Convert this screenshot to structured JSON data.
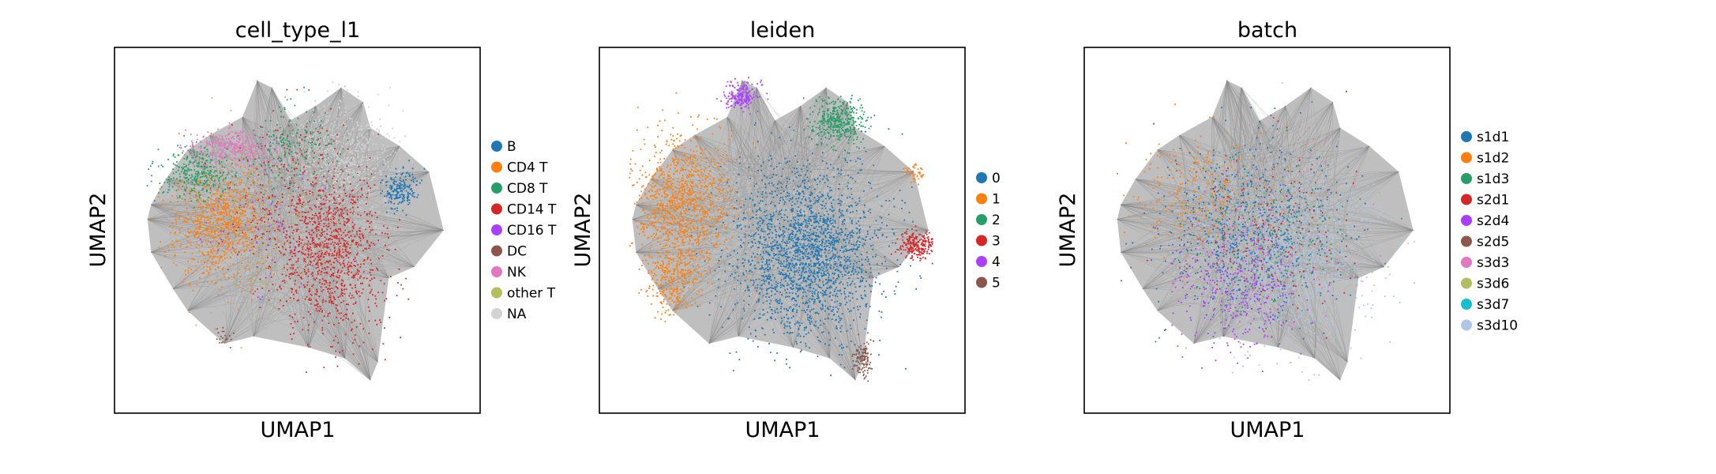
{
  "chart_data": [
    {
      "type": "scatter",
      "title": "cell_type_l1",
      "xlabel": "UMAP1",
      "ylabel": "UMAP2",
      "xticks": false,
      "yticks": false,
      "graph_edges": true,
      "edge_color": "#808080",
      "legend_position": "right",
      "legend": [
        {
          "label": "B",
          "color": "#1f77b4"
        },
        {
          "label": "CD4 T",
          "color": "#ff7f0e"
        },
        {
          "label": "CD8 T",
          "color": "#279e68"
        },
        {
          "label": "CD14 T",
          "color": "#d62728"
        },
        {
          "label": "CD16 T",
          "color": "#aa40fc"
        },
        {
          "label": "DC",
          "color": "#8c564b"
        },
        {
          "label": "NK",
          "color": "#e377c2"
        },
        {
          "label": "other T",
          "color": "#b5bd61"
        },
        {
          "label": "NA",
          "color": "#d3d3d3"
        }
      ]
    },
    {
      "type": "scatter",
      "title": "leiden",
      "xlabel": "UMAP1",
      "ylabel": "UMAP2",
      "xticks": false,
      "yticks": false,
      "graph_edges": true,
      "edge_color": "#808080",
      "legend_position": "right",
      "legend": [
        {
          "label": "0",
          "color": "#1f77b4"
        },
        {
          "label": "1",
          "color": "#ff7f0e"
        },
        {
          "label": "2",
          "color": "#279e68"
        },
        {
          "label": "3",
          "color": "#d62728"
        },
        {
          "label": "4",
          "color": "#aa40fc"
        },
        {
          "label": "5",
          "color": "#8c564b"
        }
      ]
    },
    {
      "type": "scatter",
      "title": "batch",
      "xlabel": "UMAP1",
      "ylabel": "UMAP2",
      "xticks": false,
      "yticks": false,
      "graph_edges": true,
      "edge_color": "#808080",
      "legend_position": "right",
      "legend": [
        {
          "label": "s1d1",
          "color": "#1f77b4"
        },
        {
          "label": "s1d2",
          "color": "#ff7f0e"
        },
        {
          "label": "s1d3",
          "color": "#279e68"
        },
        {
          "label": "s2d1",
          "color": "#d62728"
        },
        {
          "label": "s2d4",
          "color": "#aa40fc"
        },
        {
          "label": "s2d5",
          "color": "#8c564b"
        },
        {
          "label": "s3d3",
          "color": "#e377c2"
        },
        {
          "label": "s3d6",
          "color": "#b5bd61"
        },
        {
          "label": "s3d7",
          "color": "#17becf"
        },
        {
          "label": "s3d10",
          "color": "#aec7e8"
        }
      ]
    }
  ]
}
